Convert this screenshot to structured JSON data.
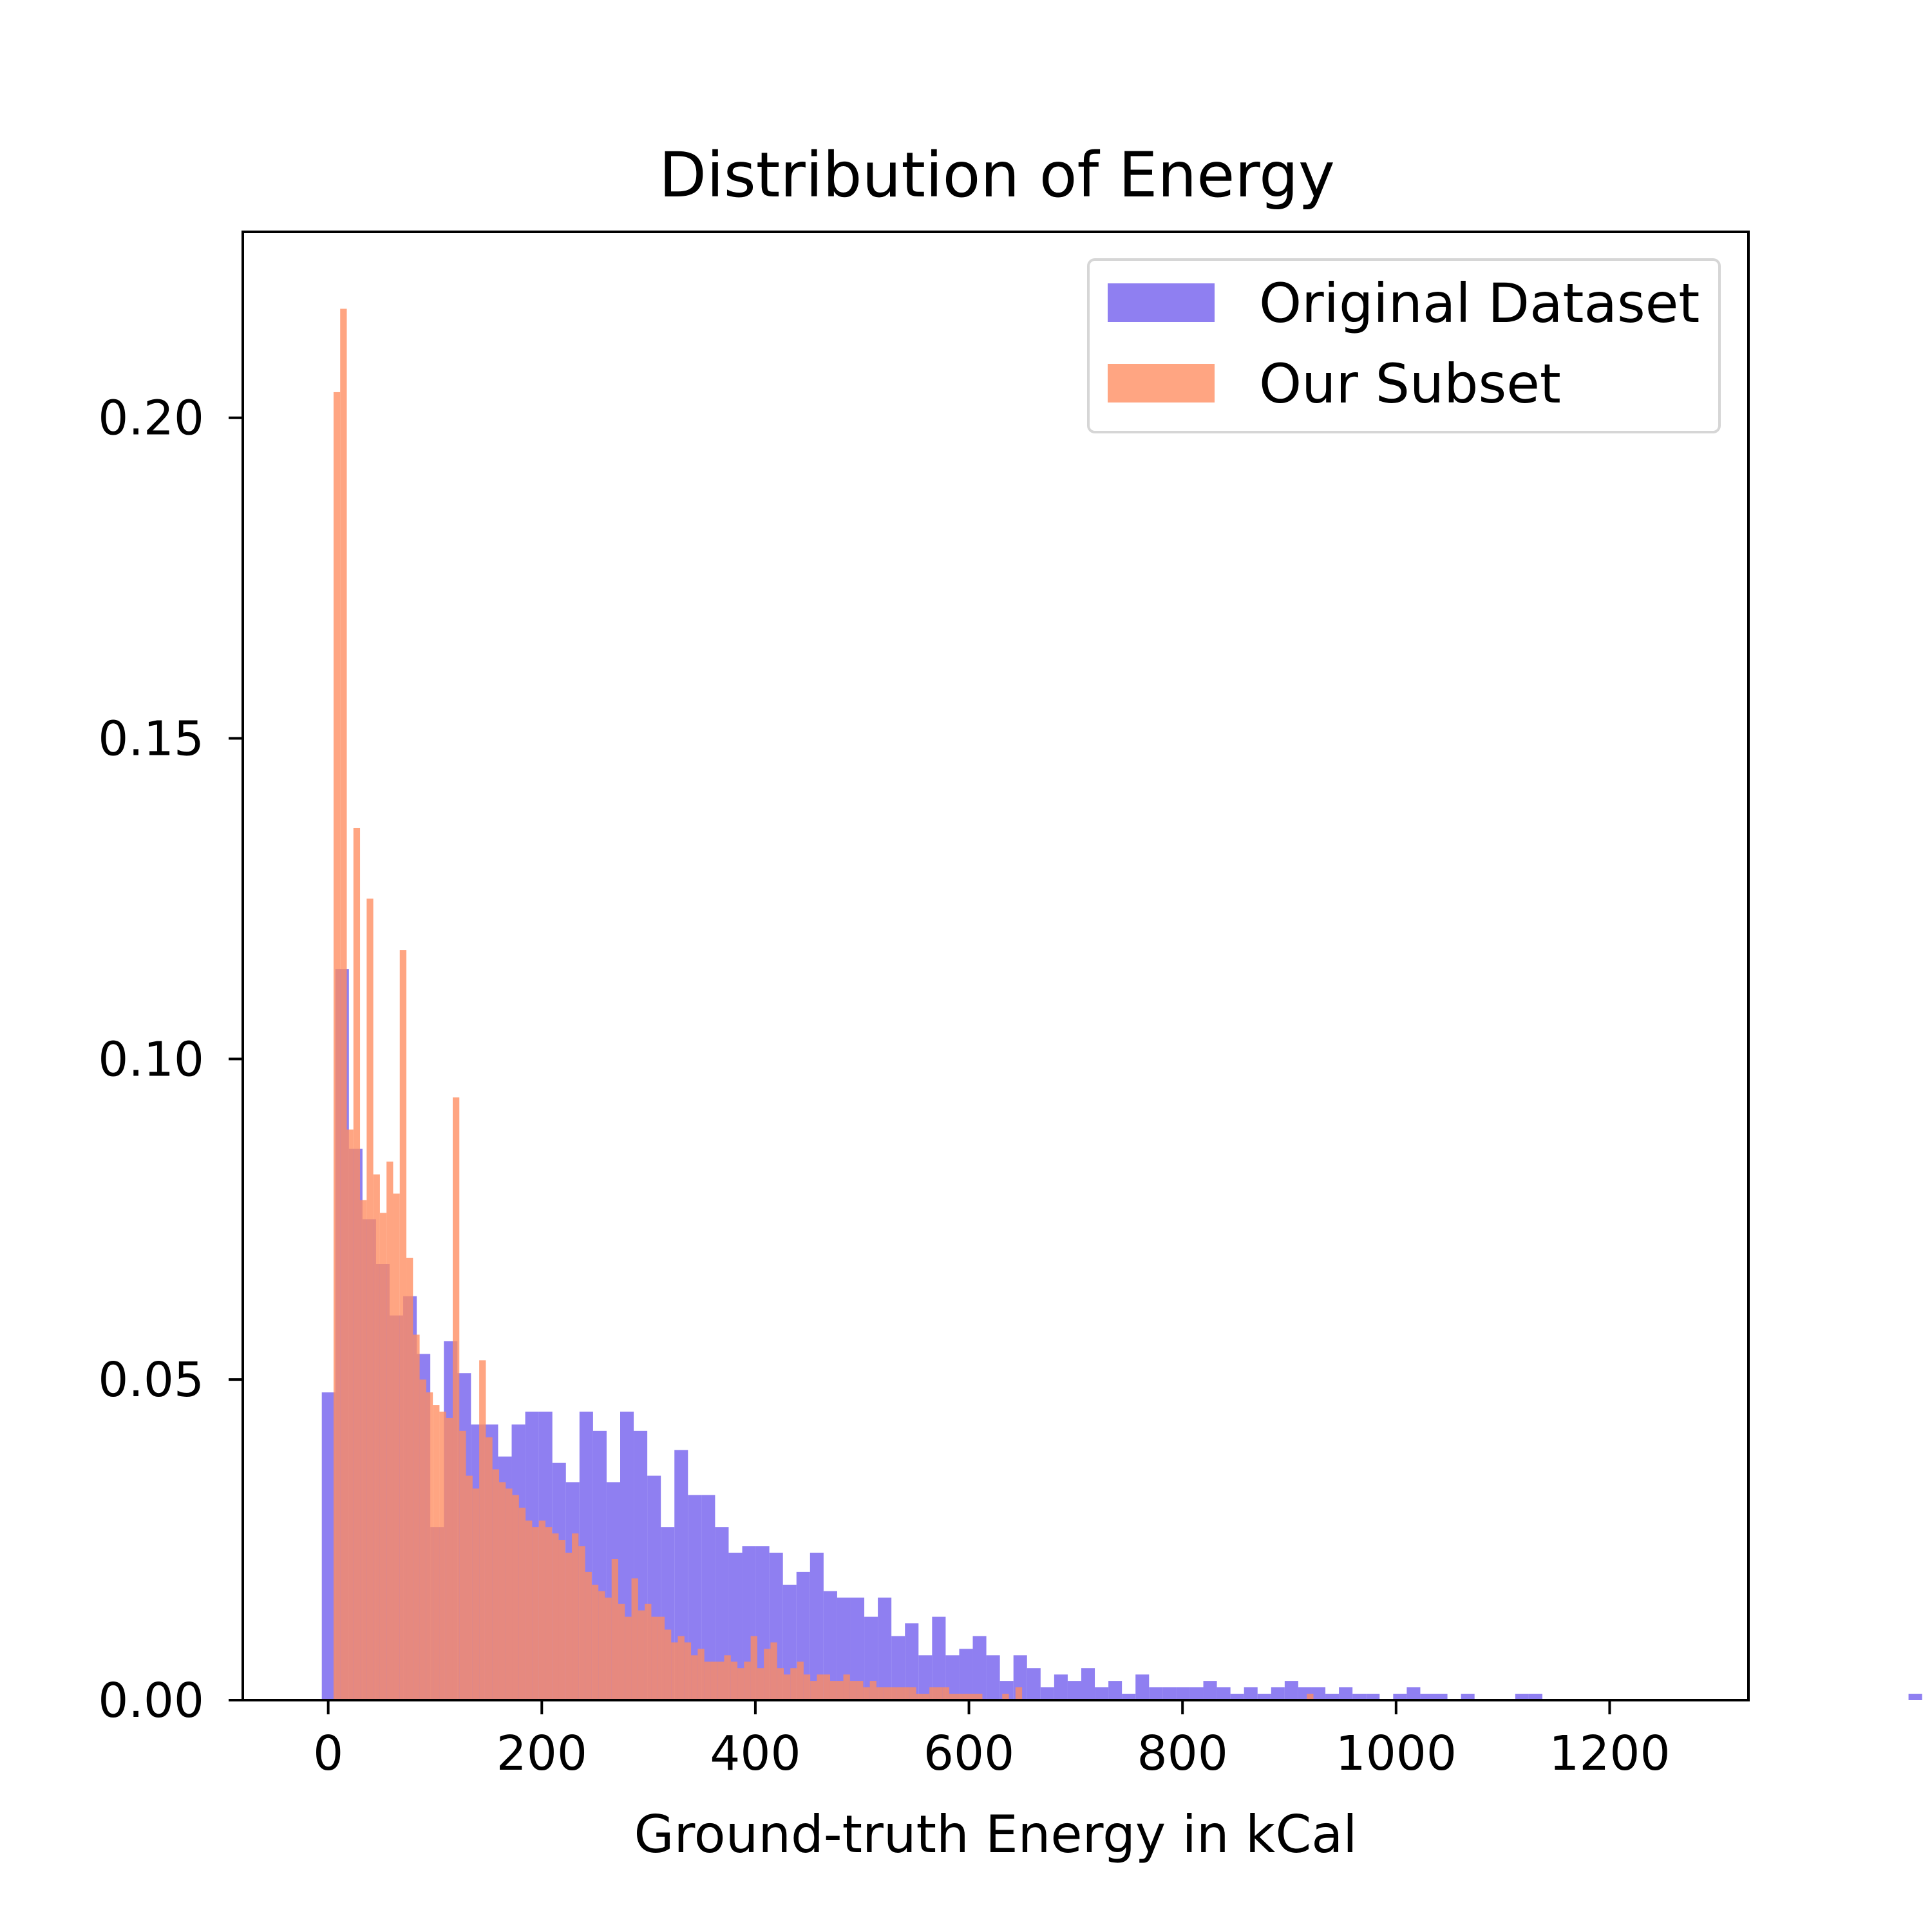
{
  "chart_data": {
    "type": "bar",
    "title": "Distribution of Energy",
    "xlabel": "Ground-truth Energy in kCal",
    "ylabel": "",
    "xlim": [
      -80,
      1330
    ],
    "ylim": [
      0,
      0.229
    ],
    "xticks": [
      0,
      200,
      400,
      600,
      800,
      1000,
      1200
    ],
    "yticks": [
      0.0,
      0.05,
      0.1,
      0.15,
      0.2
    ],
    "ytick_labels": [
      "0.00",
      "0.05",
      "0.10",
      "0.15",
      "0.20"
    ],
    "xtick_labels": [
      "0",
      "200",
      "400",
      "600",
      "800",
      "1000",
      "1200"
    ],
    "grid": false,
    "legend_position": "top-right",
    "series": [
      {
        "name": "Original Dataset",
        "color": "#7b68ee",
        "opacity": 0.85,
        "bin_width": 12.7,
        "bin_start": -6,
        "values": [
          0.048,
          0.114,
          0.086,
          0.075,
          0.068,
          0.06,
          0.063,
          0.054,
          0.027,
          0.056,
          0.051,
          0.043,
          0.043,
          0.038,
          0.043,
          0.045,
          0.045,
          0.037,
          0.034,
          0.045,
          0.042,
          0.034,
          0.045,
          0.042,
          0.035,
          0.027,
          0.039,
          0.032,
          0.032,
          0.027,
          0.023,
          0.024,
          0.024,
          0.023,
          0.018,
          0.02,
          0.023,
          0.017,
          0.016,
          0.016,
          0.013,
          0.016,
          0.01,
          0.012,
          0.007,
          0.013,
          0.007,
          0.008,
          0.01,
          0.007,
          0.003,
          0.007,
          0.005,
          0.002,
          0.004,
          0.003,
          0.005,
          0.002,
          0.003,
          0.001,
          0.004,
          0.002,
          0.002,
          0.002,
          0.002,
          0.003,
          0.002,
          0.001,
          0.002,
          0.001,
          0.002,
          0.003,
          0.002,
          0.002,
          0.001,
          0.002,
          0.001,
          0.001,
          0.0,
          0.001,
          0.002,
          0.001,
          0.001,
          0.0,
          0.001,
          0.0,
          0.0,
          0.0,
          0.001,
          0.001,
          0.0,
          0.0,
          0.0,
          0.0,
          0.0,
          0.0,
          0.0,
          0.0,
          0.0,
          0.0,
          0.0,
          0.0,
          0.0,
          0.0,
          0.0,
          0.0,
          0.0,
          0.0,
          0.0,
          0.0,
          0.0,
          0.0,
          0.0,
          0.0,
          0.0,
          0.0,
          0.0,
          0.001,
          0.0,
          0.0,
          0.0,
          0.0,
          0.0,
          0.0,
          0.0,
          0.0,
          0.0,
          0.0,
          0.0,
          0.0,
          0.0,
          0.0,
          0.0,
          0.0,
          0.0,
          0.0,
          0.0
        ]
      },
      {
        "name": "Our Subset",
        "color": "#ff8c5f",
        "opacity": 0.78,
        "bin_width": 6.2,
        "bin_start": 5,
        "values": [
          0.204,
          0.217,
          0.089,
          0.136,
          0.078,
          0.125,
          0.082,
          0.076,
          0.084,
          0.079,
          0.117,
          0.069,
          0.057,
          0.05,
          0.048,
          0.046,
          0.045,
          0.044,
          0.094,
          0.042,
          0.035,
          0.033,
          0.053,
          0.041,
          0.036,
          0.034,
          0.033,
          0.032,
          0.03,
          0.028,
          0.027,
          0.028,
          0.027,
          0.026,
          0.025,
          0.023,
          0.026,
          0.024,
          0.02,
          0.018,
          0.017,
          0.016,
          0.022,
          0.015,
          0.013,
          0.019,
          0.014,
          0.015,
          0.013,
          0.013,
          0.011,
          0.009,
          0.01,
          0.009,
          0.007,
          0.008,
          0.006,
          0.006,
          0.006,
          0.007,
          0.006,
          0.005,
          0.006,
          0.01,
          0.005,
          0.008,
          0.009,
          0.005,
          0.004,
          0.005,
          0.006,
          0.004,
          0.003,
          0.004,
          0.004,
          0.003,
          0.003,
          0.004,
          0.003,
          0.003,
          0.002,
          0.003,
          0.002,
          0.002,
          0.002,
          0.002,
          0.002,
          0.002,
          0.001,
          0.001,
          0.002,
          0.002,
          0.002,
          0.001,
          0.001,
          0.001,
          0.001,
          0.001,
          0.0,
          0.0,
          0.0,
          0.001,
          0.0,
          0.002,
          0.0,
          0.0,
          0.0,
          0.0,
          0.0,
          0.0,
          0.0,
          0.0,
          0.0,
          0.0,
          0.0,
          0.0,
          0.0,
          0.0,
          0.0,
          0.0,
          0.0,
          0.0,
          0.0,
          0.0,
          0.0,
          0.0,
          0.0,
          0.0,
          0.0,
          0.0,
          0.0,
          0.0,
          0.0,
          0.0,
          0.0,
          0.0,
          0.0,
          0.0,
          0.0,
          0.0,
          0.0,
          0.0,
          0.0,
          0.0,
          0.0,
          0.0,
          0.0,
          0.001
        ]
      }
    ]
  }
}
